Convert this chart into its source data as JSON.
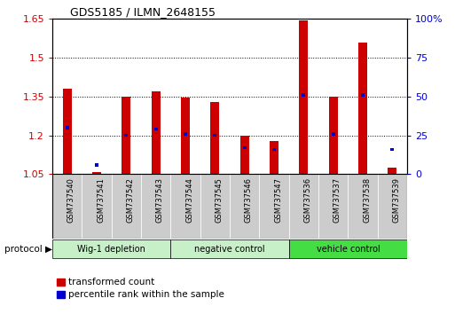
{
  "title": "GDS5185 / ILMN_2648155",
  "samples": [
    "GSM737540",
    "GSM737541",
    "GSM737542",
    "GSM737543",
    "GSM737544",
    "GSM737545",
    "GSM737546",
    "GSM737547",
    "GSM737536",
    "GSM737537",
    "GSM737538",
    "GSM737539"
  ],
  "red_values": [
    1.38,
    1.057,
    1.348,
    1.37,
    1.347,
    1.33,
    1.2,
    1.18,
    1.645,
    1.348,
    1.56,
    1.075
  ],
  "blue_pct": [
    30,
    6,
    25,
    29,
    26,
    25,
    17,
    16,
    51,
    26,
    51,
    16
  ],
  "base": 1.05,
  "ylim_left": [
    1.05,
    1.65
  ],
  "yticks_left": [
    1.05,
    1.2,
    1.35,
    1.5,
    1.65
  ],
  "ylim_right": [
    0,
    100
  ],
  "yticks_right": [
    0,
    25,
    50,
    75,
    100
  ],
  "groups": [
    {
      "label": "Wig-1 depletion",
      "start": 0,
      "end": 4,
      "color": "#c8f0c8"
    },
    {
      "label": "negative control",
      "start": 4,
      "end": 8,
      "color": "#c8f0c8"
    },
    {
      "label": "vehicle control",
      "start": 8,
      "end": 12,
      "color": "#44dd44"
    }
  ],
  "bar_red": "#cc0000",
  "bar_blue": "#0000cc",
  "sample_bg": "#cccccc",
  "grid_color": "#333333",
  "tick_red": "#cc0000",
  "tick_blue": "#0000cc",
  "legend_red": "transformed count",
  "legend_blue": "percentile rank within the sample",
  "protocol_label": "protocol"
}
